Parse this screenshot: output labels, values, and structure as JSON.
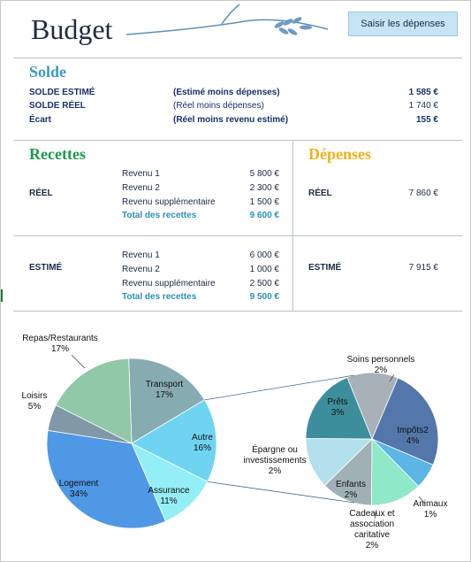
{
  "header": {
    "title": "Budget",
    "button": "Saisir les dépenses"
  },
  "solde": {
    "title": "Solde",
    "rows": [
      [
        "SOLDE ESTIMÉ",
        "(Estimé moins dépenses)",
        "1 585 €"
      ],
      [
        "SOLDE RÉEL",
        "(Réel moins dépenses)",
        "1 740 €"
      ],
      [
        "Écart",
        "(Réel moins revenu estimé)",
        "155 €"
      ]
    ]
  },
  "recettes": {
    "title": "Recettes",
    "blocks": [
      {
        "label": "RÉEL",
        "items": [
          [
            "Revenu 1",
            "5 800 €"
          ],
          [
            "Revenu 2",
            "2 300 €"
          ],
          [
            "Revenu supplémentaire",
            "1 500 €"
          ]
        ],
        "total": [
          "Total des recettes",
          "9 600 €"
        ]
      },
      {
        "label": "ESTIMÉ",
        "items": [
          [
            "Revenu 1",
            "6 000 €"
          ],
          [
            "Revenu 2",
            "1 000 €"
          ],
          [
            "Revenu supplémentaire",
            "2 500 €"
          ]
        ],
        "total": [
          "Total des recettes",
          "9 500 €"
        ]
      }
    ]
  },
  "depenses": {
    "title": "Dépenses",
    "rows": [
      [
        "RÉEL",
        "7 860 €"
      ],
      [
        "ESTIMÉ",
        "7 915 €"
      ]
    ]
  },
  "chart_data": [
    {
      "type": "pie",
      "categories": [
        "Transport",
        "Autre",
        "Assurance",
        "Logement",
        "Loisirs",
        "Repas/Restaurants"
      ],
      "values": [
        17,
        16,
        11,
        34,
        5,
        17
      ],
      "value_labels": [
        "17%",
        "16%",
        "11%",
        "34%",
        "5%",
        "17%"
      ],
      "colors": [
        "#86acb2",
        "#6fd4f2",
        "#93eef6",
        "#4f98e6",
        "#8198a8",
        "#90c8a8"
      ]
    },
    {
      "type": "pie",
      "categories": [
        "Soins personnels",
        "Impôts2",
        "Animaux",
        "Cadeaux et association caritative",
        "Enfants",
        "Épargne ou investissements",
        "Prêts"
      ],
      "values": [
        2,
        4,
        1,
        2,
        2,
        2,
        3
      ],
      "value_labels": [
        "2%",
        "4%",
        "1%",
        "2%",
        "2%",
        "2%",
        "3%"
      ],
      "colors": [
        "#a7b1b7",
        "#5377ab",
        "#5bb6e6",
        "#8fe8c8",
        "#a0b1b6",
        "#b4e0ee",
        "#3d8e9c"
      ]
    }
  ]
}
